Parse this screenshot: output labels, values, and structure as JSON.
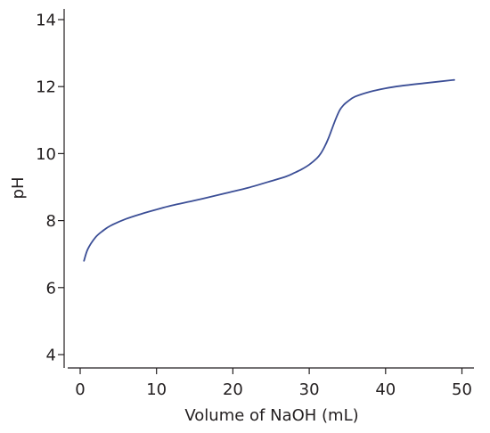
{
  "chart_data": {
    "type": "line",
    "title": "",
    "xlabel": "Volume of NaOH (mL)",
    "ylabel": "pH",
    "xlim": [
      0,
      50
    ],
    "ylim": [
      4,
      14
    ],
    "xticks": [
      0,
      10,
      20,
      30,
      40,
      50
    ],
    "yticks": [
      4,
      6,
      8,
      10,
      12,
      14
    ],
    "xtick_labels": [
      "0",
      "10",
      "20",
      "30",
      "40",
      "50"
    ],
    "ytick_labels": [
      "4",
      "6",
      "8",
      "10",
      "12",
      "14"
    ],
    "grid": false,
    "legend": "none",
    "series_color": "#3b4e96",
    "series": [
      {
        "x": [
          0.5,
          1,
          2,
          3,
          4,
          6,
          8,
          10,
          12,
          15,
          18,
          20,
          22,
          25,
          27,
          28,
          29,
          30,
          31,
          31.5,
          32,
          32.5,
          33,
          33.5,
          34,
          34.5,
          35,
          36,
          38,
          40,
          42,
          45,
          49
        ],
        "values": [
          6.8,
          7.15,
          7.5,
          7.7,
          7.85,
          8.05,
          8.2,
          8.33,
          8.45,
          8.6,
          8.76,
          8.87,
          8.98,
          9.18,
          9.32,
          9.42,
          9.53,
          9.67,
          9.86,
          10.0,
          10.2,
          10.45,
          10.75,
          11.05,
          11.3,
          11.45,
          11.55,
          11.7,
          11.85,
          11.95,
          12.02,
          12.1,
          12.2
        ]
      }
    ]
  }
}
